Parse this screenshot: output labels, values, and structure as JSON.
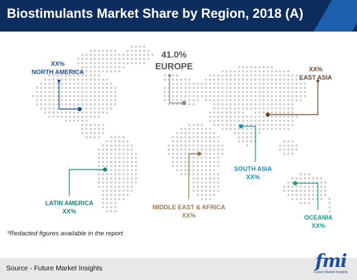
{
  "header": {
    "title": "Biostimulants Market Share by Region, 2018 (A)",
    "background_color": "#0c2d5e",
    "accent_color": "#1e5fb0"
  },
  "regions": {
    "europe": {
      "value": "41.0%",
      "name": "EUROPE",
      "color": "#888888"
    },
    "north_america": {
      "value": "XX%",
      "name": "NORTH AMERICA",
      "color": "#1f4e9a"
    },
    "east_asia": {
      "value": "XX%",
      "name": "EAST ASIA",
      "color": "#6b4228"
    },
    "south_asia": {
      "value": "XX%",
      "name": "SOUTH ASIA",
      "color": "#1a8fb8"
    },
    "latin_america": {
      "value": "XX%",
      "name": "LATIN AMERICA",
      "color": "#1a7f78"
    },
    "middle_east_africa": {
      "value": "XX%",
      "name": "MIDDLE EAST & AFRICA",
      "color": "#9c7a52"
    },
    "oceania": {
      "value": "XX%",
      "name": "OCEANIA",
      "color": "#1a9a8c"
    }
  },
  "note": "*Redacted figures available in the report",
  "footer": {
    "source": "Source - Future Market Insights",
    "logo_text": "fmi",
    "logo_subtext": "Future Market Insights"
  },
  "map": {
    "dot_color": "#c9c9c9"
  }
}
